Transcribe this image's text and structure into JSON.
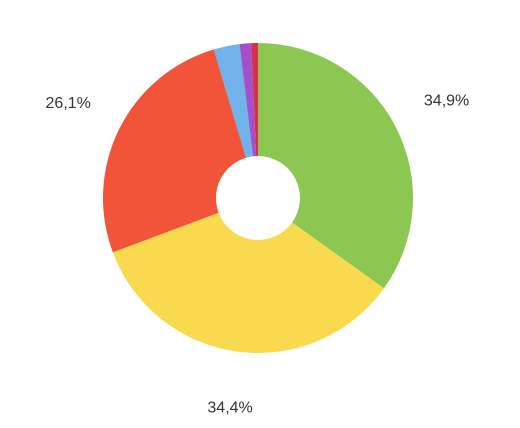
{
  "chart_data": {
    "type": "donut",
    "values": [
      34.9,
      34.4,
      26.1,
      2.7,
      1.2,
      0.7
    ],
    "value_labels": [
      "34,9%",
      "34,4%",
      "26,1%",
      null,
      null,
      null
    ],
    "colors": [
      "#8cc751",
      "#f9d94e",
      "#f2543a",
      "#6fb3ea",
      "#a550c8",
      "#d9304a"
    ]
  }
}
